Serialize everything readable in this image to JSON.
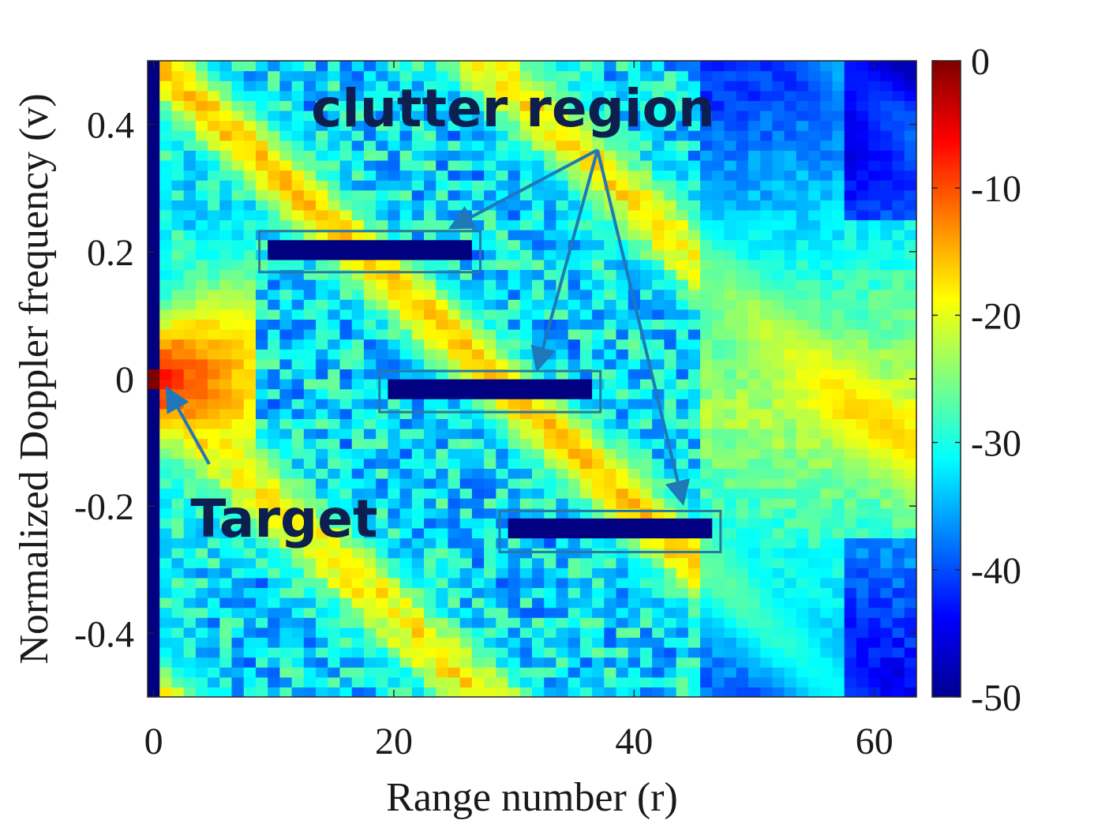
{
  "chart_data": {
    "type": "heatmap",
    "title": "",
    "xlabel": "Range number (r)",
    "ylabel": "Normalized Doppler frequency (v)",
    "xlim": [
      -0.5,
      63.5
    ],
    "ylim": [
      -0.5,
      0.5
    ],
    "x_ticks": [
      0,
      20,
      40,
      60
    ],
    "x_tick_labels": [
      "0",
      "20",
      "40",
      "60"
    ],
    "y_ticks": [
      -0.4,
      -0.2,
      0,
      0.2,
      0.4
    ],
    "y_tick_labels": [
      "-0.4",
      "-0.2",
      "0",
      "0.2",
      "0.4"
    ],
    "grid_size": {
      "range_bins": 64,
      "doppler_bins": 64
    },
    "colorbar": {
      "colormap": "jet",
      "range": [
        -50,
        0
      ],
      "ticks": [
        0,
        -10,
        -20,
        -30,
        -40,
        -50
      ],
      "tick_labels": [
        "0",
        "-10",
        "-20",
        "-30",
        "-40",
        "-50"
      ]
    },
    "features": {
      "target": {
        "range": 0,
        "doppler": 0,
        "level_db": 0
      },
      "diagonal_ridges_db": -15,
      "right_side_plateau": {
        "range": [
          48,
          56
        ],
        "doppler": [
          -0.1,
          0.0
        ],
        "level_db": -18
      }
    },
    "clutter_regions": [
      {
        "range": [
          9,
          27
        ],
        "doppler": 0.2,
        "level_db": -50
      },
      {
        "range": [
          19,
          37
        ],
        "doppler": -0.02,
        "level_db": -50
      },
      {
        "range": [
          29,
          47
        ],
        "doppler": -0.24,
        "level_db": -50
      }
    ],
    "annotations": [
      {
        "text": "clutter region",
        "points_to": [
          {
            "range": 25,
            "doppler": 0.24
          },
          {
            "range": 32,
            "doppler": 0.02
          },
          {
            "range": 44,
            "doppler": -0.19
          }
        ]
      },
      {
        "text": "Target",
        "points_to": [
          {
            "range": 1,
            "doppler": -0.02
          }
        ]
      }
    ]
  },
  "colors": {
    "annotation_text": "#0d1f4f",
    "arrow": "#1f78b8",
    "box": "#267aa3"
  }
}
